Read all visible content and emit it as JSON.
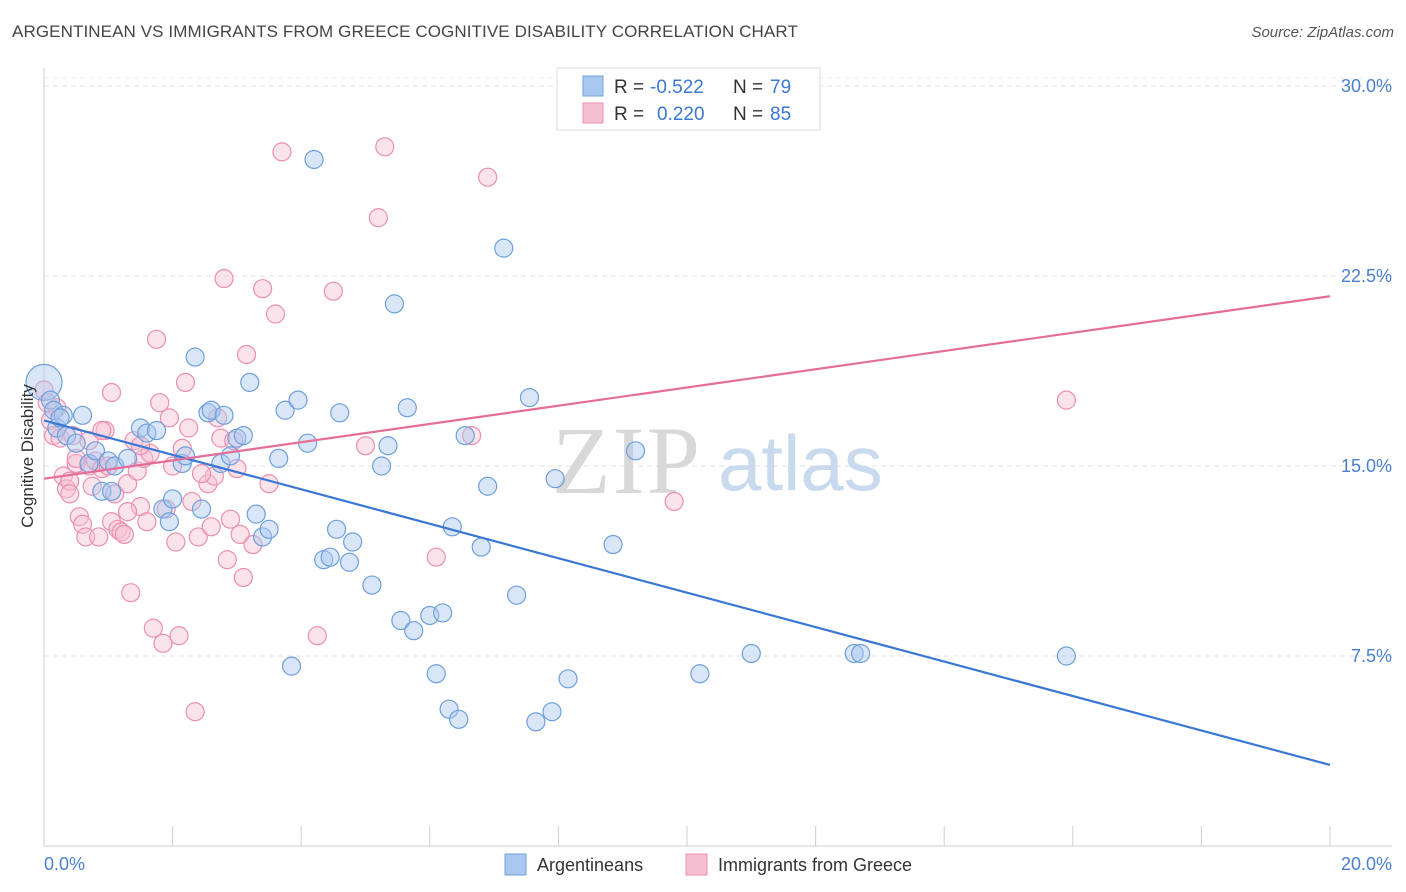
{
  "header": {
    "title": "ARGENTINEAN VS IMMIGRANTS FROM GREECE COGNITIVE DISABILITY CORRELATION CHART",
    "source": "Source: ZipAtlas.com"
  },
  "watermark": {
    "zip": "ZIP",
    "atlas": "atlas"
  },
  "legend": {
    "rows": [
      {
        "r_label": "R =",
        "r_value": "-0.522",
        "n_label": "N =",
        "n_value": "79"
      },
      {
        "r_label": "R =",
        "r_value": "0.220",
        "n_label": "N =",
        "n_value": "85"
      }
    ]
  },
  "colors": {
    "blue_fill": "#a9c8f0",
    "blue_stroke": "#6f9fdc",
    "blue_line": "#3a78d4",
    "pink_fill": "#f7c0d2",
    "pink_stroke": "#ec8fb0",
    "pink_line": "#e56d97",
    "accent_text": "#3a78d4"
  },
  "chart_data": {
    "type": "scatter",
    "title": "ARGENTINEAN VS IMMIGRANTS FROM GREECE COGNITIVE DISABILITY CORRELATION CHART",
    "ylabel": "Cognitive Disability",
    "xlim": [
      0,
      20
    ],
    "ylim": [
      0,
      31.5
    ],
    "x_tick_labels": [
      {
        "value": 0,
        "label": "0.0%"
      },
      {
        "value": 20,
        "label": "20.0%"
      }
    ],
    "y_tick_labels": [
      {
        "value": 7.5,
        "label": "7.5%"
      },
      {
        "value": 15,
        "label": "15.0%"
      },
      {
        "value": 22.5,
        "label": "22.5%"
      },
      {
        "value": 30,
        "label": "30.0%"
      }
    ],
    "legend_position": "top-center",
    "grid": true,
    "series": [
      {
        "name": "Argentineans",
        "color": "#a9c8f0",
        "trend": {
          "x": [
            0,
            20
          ],
          "y": [
            16.8,
            3.2
          ]
        },
        "points": [
          [
            0.0,
            18.3
          ],
          [
            0.1,
            17.6
          ],
          [
            0.15,
            17.2
          ],
          [
            0.2,
            16.5
          ],
          [
            0.3,
            17.0
          ],
          [
            0.35,
            16.2
          ],
          [
            0.5,
            15.9
          ],
          [
            0.6,
            17.0
          ],
          [
            0.7,
            15.1
          ],
          [
            0.8,
            15.6
          ],
          [
            0.9,
            14.0
          ],
          [
            1.0,
            15.2
          ],
          [
            1.1,
            15.0
          ],
          [
            1.3,
            15.3
          ],
          [
            1.5,
            16.5
          ],
          [
            1.6,
            16.3
          ],
          [
            1.75,
            16.4
          ],
          [
            1.85,
            13.3
          ],
          [
            1.95,
            12.8
          ],
          [
            2.0,
            13.7
          ],
          [
            2.15,
            15.1
          ],
          [
            2.2,
            15.4
          ],
          [
            2.35,
            19.3
          ],
          [
            2.45,
            13.3
          ],
          [
            2.55,
            17.1
          ],
          [
            2.6,
            17.2
          ],
          [
            2.75,
            15.1
          ],
          [
            2.8,
            17.0
          ],
          [
            2.9,
            15.4
          ],
          [
            3.0,
            16.1
          ],
          [
            3.1,
            16.2
          ],
          [
            3.2,
            18.3
          ],
          [
            3.3,
            13.1
          ],
          [
            3.4,
            12.2
          ],
          [
            3.5,
            12.5
          ],
          [
            3.65,
            15.3
          ],
          [
            3.75,
            17.2
          ],
          [
            3.85,
            7.1
          ],
          [
            3.95,
            17.6
          ],
          [
            4.1,
            15.9
          ],
          [
            4.2,
            27.1
          ],
          [
            4.35,
            11.3
          ],
          [
            4.45,
            11.4
          ],
          [
            4.55,
            12.5
          ],
          [
            4.6,
            17.1
          ],
          [
            4.75,
            11.2
          ],
          [
            4.8,
            12.0
          ],
          [
            5.1,
            10.3
          ],
          [
            5.25,
            15.0
          ],
          [
            5.35,
            15.8
          ],
          [
            5.45,
            21.4
          ],
          [
            5.55,
            8.9
          ],
          [
            5.65,
            17.3
          ],
          [
            5.75,
            8.5
          ],
          [
            6.0,
            9.1
          ],
          [
            6.1,
            6.8
          ],
          [
            6.2,
            9.2
          ],
          [
            6.3,
            5.4
          ],
          [
            6.35,
            12.6
          ],
          [
            6.45,
            5.0
          ],
          [
            6.55,
            16.2
          ],
          [
            6.8,
            11.8
          ],
          [
            6.9,
            14.2
          ],
          [
            7.15,
            23.6
          ],
          [
            7.35,
            9.9
          ],
          [
            7.55,
            17.7
          ],
          [
            7.65,
            4.9
          ],
          [
            7.9,
            5.3
          ],
          [
            7.95,
            14.5
          ],
          [
            8.15,
            6.6
          ],
          [
            8.85,
            11.9
          ],
          [
            9.2,
            15.6
          ],
          [
            10.2,
            6.8
          ],
          [
            11.0,
            7.6
          ],
          [
            12.6,
            7.6
          ],
          [
            12.7,
            7.6
          ],
          [
            15.9,
            7.5
          ],
          [
            0.25,
            16.9
          ],
          [
            1.05,
            14.0
          ]
        ]
      },
      {
        "name": "Immigrants from Greece",
        "color": "#f7c0d2",
        "trend": {
          "x": [
            0,
            20
          ],
          "y": [
            14.5,
            21.7
          ]
        },
        "points": [
          [
            0.0,
            18.0
          ],
          [
            0.05,
            17.5
          ],
          [
            0.1,
            16.8
          ],
          [
            0.15,
            16.2
          ],
          [
            0.2,
            17.3
          ],
          [
            0.25,
            16.1
          ],
          [
            0.3,
            14.6
          ],
          [
            0.35,
            14.1
          ],
          [
            0.4,
            14.4
          ],
          [
            0.45,
            16.2
          ],
          [
            0.5,
            15.1
          ],
          [
            0.55,
            13.0
          ],
          [
            0.6,
            12.7
          ],
          [
            0.65,
            12.2
          ],
          [
            0.7,
            15.0
          ],
          [
            0.75,
            14.2
          ],
          [
            0.8,
            15.2
          ],
          [
            0.85,
            12.2
          ],
          [
            0.9,
            14.9
          ],
          [
            0.95,
            16.4
          ],
          [
            1.0,
            15.0
          ],
          [
            1.05,
            12.8
          ],
          [
            1.1,
            13.9
          ],
          [
            1.15,
            12.5
          ],
          [
            1.2,
            12.4
          ],
          [
            1.25,
            12.3
          ],
          [
            1.3,
            14.3
          ],
          [
            1.35,
            10.0
          ],
          [
            1.4,
            16.0
          ],
          [
            1.45,
            14.8
          ],
          [
            1.5,
            13.4
          ],
          [
            1.55,
            15.3
          ],
          [
            1.6,
            12.8
          ],
          [
            1.65,
            15.5
          ],
          [
            1.7,
            8.6
          ],
          [
            1.75,
            20.0
          ],
          [
            1.8,
            17.5
          ],
          [
            1.85,
            8.0
          ],
          [
            1.9,
            13.3
          ],
          [
            1.95,
            16.9
          ],
          [
            2.0,
            15.0
          ],
          [
            2.05,
            12.0
          ],
          [
            2.1,
            8.3
          ],
          [
            2.15,
            15.7
          ],
          [
            2.2,
            18.3
          ],
          [
            2.25,
            16.5
          ],
          [
            2.3,
            13.6
          ],
          [
            2.35,
            5.3
          ],
          [
            2.4,
            12.2
          ],
          [
            2.55,
            14.3
          ],
          [
            2.6,
            12.6
          ],
          [
            2.65,
            14.6
          ],
          [
            2.7,
            16.9
          ],
          [
            2.75,
            16.1
          ],
          [
            2.8,
            22.4
          ],
          [
            2.85,
            11.3
          ],
          [
            2.9,
            12.9
          ],
          [
            2.95,
            16.0
          ],
          [
            3.0,
            14.9
          ],
          [
            3.05,
            12.3
          ],
          [
            3.1,
            10.6
          ],
          [
            3.15,
            19.4
          ],
          [
            3.25,
            11.9
          ],
          [
            3.4,
            22.0
          ],
          [
            3.5,
            14.3
          ],
          [
            3.6,
            21.0
          ],
          [
            3.7,
            27.4
          ],
          [
            4.25,
            8.3
          ],
          [
            4.5,
            21.9
          ],
          [
            5.0,
            15.8
          ],
          [
            5.2,
            24.8
          ],
          [
            5.3,
            27.6
          ],
          [
            6.1,
            11.4
          ],
          [
            6.65,
            16.2
          ],
          [
            6.9,
            26.4
          ],
          [
            9.8,
            13.6
          ],
          [
            15.9,
            17.6
          ],
          [
            1.05,
            17.9
          ],
          [
            0.5,
            15.3
          ],
          [
            0.7,
            16.0
          ],
          [
            1.5,
            15.8
          ],
          [
            2.45,
            14.7
          ],
          [
            0.4,
            13.9
          ],
          [
            0.9,
            16.4
          ],
          [
            1.3,
            13.2
          ]
        ]
      }
    ]
  },
  "bottom_legend": {
    "items": [
      {
        "label": "Argentineans"
      },
      {
        "label": "Immigrants from Greece"
      }
    ]
  }
}
